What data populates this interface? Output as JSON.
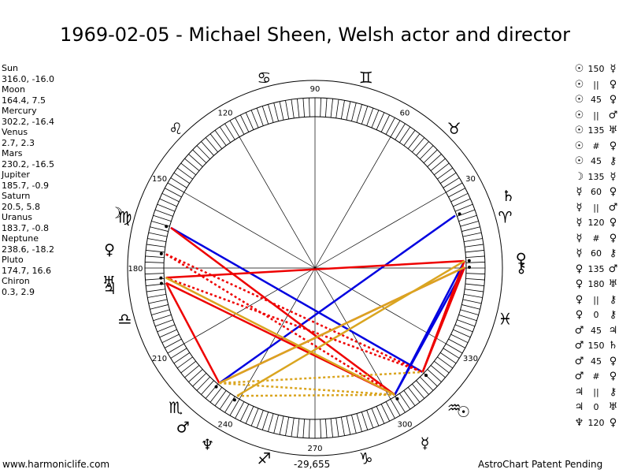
{
  "title": "1969-02-05 - Michael Sheen, Welsh actor and director",
  "positions": [
    {
      "name": "Sun",
      "value": "316.0, -16.0"
    },
    {
      "name": "Moon",
      "value": "164.4, 7.5"
    },
    {
      "name": "Mercury",
      "value": "302.2, -16.4"
    },
    {
      "name": "Venus",
      "value": "2.7, 2.3"
    },
    {
      "name": "Mars",
      "value": "230.2, -16.5"
    },
    {
      "name": "Jupiter",
      "value": "185.7, -0.9"
    },
    {
      "name": "Saturn",
      "value": "20.5, 5.8"
    },
    {
      "name": "Uranus",
      "value": "183.7, -0.8"
    },
    {
      "name": "Neptune",
      "value": "238.6, -18.2"
    },
    {
      "name": "Pluto",
      "value": "174.7, 16.6"
    },
    {
      "name": "Chiron",
      "value": "0.3, 2.9"
    }
  ],
  "aspects": [
    {
      "p1": "☉",
      "mid": "150",
      "p2": "☿"
    },
    {
      "p1": "☉",
      "mid": "||",
      "p2": "♀"
    },
    {
      "p1": "☉",
      "mid": "45",
      "p2": "♀"
    },
    {
      "p1": "☉",
      "mid": "||",
      "p2": "♂"
    },
    {
      "p1": "☉",
      "mid": "135",
      "p2": "♅"
    },
    {
      "p1": "☉",
      "mid": "#",
      "p2": "♀"
    },
    {
      "p1": "☉",
      "mid": "45",
      "p2": "⚷"
    },
    {
      "p1": "☽",
      "mid": "135",
      "p2": "☿"
    },
    {
      "p1": "☿",
      "mid": "60",
      "p2": "♀"
    },
    {
      "p1": "☿",
      "mid": "||",
      "p2": "♂"
    },
    {
      "p1": "☿",
      "mid": "120",
      "p2": "♀"
    },
    {
      "p1": "☿",
      "mid": "#",
      "p2": "♀"
    },
    {
      "p1": "☿",
      "mid": "60",
      "p2": "⚷"
    },
    {
      "p1": "♀",
      "mid": "135",
      "p2": "♂"
    },
    {
      "p1": "♀",
      "mid": "180",
      "p2": "♅"
    },
    {
      "p1": "♀",
      "mid": "||",
      "p2": "⚷"
    },
    {
      "p1": "♀",
      "mid": "0",
      "p2": "⚷"
    },
    {
      "p1": "♂",
      "mid": "45",
      "p2": "♃"
    },
    {
      "p1": "♂",
      "mid": "150",
      "p2": "♄"
    },
    {
      "p1": "♂",
      "mid": "45",
      "p2": "♀"
    },
    {
      "p1": "♂",
      "mid": "#",
      "p2": "♀"
    },
    {
      "p1": "♃",
      "mid": "||",
      "p2": "⚷"
    },
    {
      "p1": "♃",
      "mid": "0",
      "p2": "♅"
    },
    {
      "p1": "♆",
      "mid": "120",
      "p2": "♀"
    }
  ],
  "wheel": {
    "degree_labels": [
      "90",
      "60",
      "30",
      "330",
      "300",
      "270",
      "240",
      "210",
      "180",
      "150",
      "120"
    ],
    "zodiac": [
      "♈",
      "♉",
      "♊",
      "♋",
      "♌",
      "♍",
      "♎",
      "♏",
      "♐",
      "♑",
      "♒",
      "♓"
    ],
    "center_value": "-29,655",
    "planets": [
      {
        "glyph": "☉",
        "lon": 316.0
      },
      {
        "glyph": "☽",
        "lon": 164.4
      },
      {
        "glyph": "☿",
        "lon": 302.2
      },
      {
        "glyph": "♀",
        "lon": 2.7
      },
      {
        "glyph": "♂",
        "lon": 230.2
      },
      {
        "glyph": "♃",
        "lon": 185.7
      },
      {
        "glyph": "♄",
        "lon": 20.5
      },
      {
        "glyph": "♅",
        "lon": 183.7
      },
      {
        "glyph": "♆",
        "lon": 238.6
      },
      {
        "glyph": "♀",
        "lon": 174.7
      },
      {
        "glyph": "⚷",
        "lon": 0.3
      }
    ],
    "aspect_lines": [
      {
        "a": 164.4,
        "b": 316.0,
        "color": "#0000e0",
        "style": "solid"
      },
      {
        "a": 230.2,
        "b": 20.5,
        "color": "#0000e0",
        "style": "solid"
      },
      {
        "a": 302.2,
        "b": 2.7,
        "color": "#0000e0",
        "style": "solid"
      },
      {
        "a": 302.2,
        "b": 0.3,
        "color": "#0000e0",
        "style": "solid"
      },
      {
        "a": 164.4,
        "b": 302.2,
        "color": "#ee0000",
        "style": "solid"
      },
      {
        "a": 183.7,
        "b": 2.7,
        "color": "#ee0000",
        "style": "solid"
      },
      {
        "a": 316.0,
        "b": 0.3,
        "color": "#ee0000",
        "style": "solid"
      },
      {
        "a": 316.0,
        "b": 2.7,
        "color": "#ee0000",
        "style": "solid"
      },
      {
        "a": 230.2,
        "b": 0.3,
        "color": "#ee0000",
        "style": "solid"
      },
      {
        "a": 185.7,
        "b": 302.2,
        "color": "#ee0000",
        "style": "solid"
      },
      {
        "a": 185.7,
        "b": 230.2,
        "color": "#ee0000",
        "style": "solid"
      },
      {
        "a": 174.7,
        "b": 316.0,
        "color": "#ee0000",
        "style": "dotted"
      },
      {
        "a": 174.7,
        "b": 302.2,
        "color": "#ee0000",
        "style": "dotted"
      },
      {
        "a": 183.7,
        "b": 316.0,
        "color": "#ee0000",
        "style": "dotted"
      },
      {
        "a": 183.7,
        "b": 302.2,
        "color": "#daa520",
        "style": "solid"
      },
      {
        "a": 238.6,
        "b": 2.7,
        "color": "#daa520",
        "style": "solid"
      },
      {
        "a": 230.2,
        "b": 0.3,
        "color": "#daa520",
        "style": "solid"
      },
      {
        "a": 230.2,
        "b": 316.0,
        "color": "#daa520",
        "style": "dotted"
      },
      {
        "a": 230.2,
        "b": 302.2,
        "color": "#daa520",
        "style": "dotted"
      },
      {
        "a": 238.6,
        "b": 302.2,
        "color": "#daa520",
        "style": "dotted"
      }
    ]
  },
  "footer": {
    "website": "www.harmoniclife.com",
    "brand": "AstroChart Patent Pending"
  }
}
